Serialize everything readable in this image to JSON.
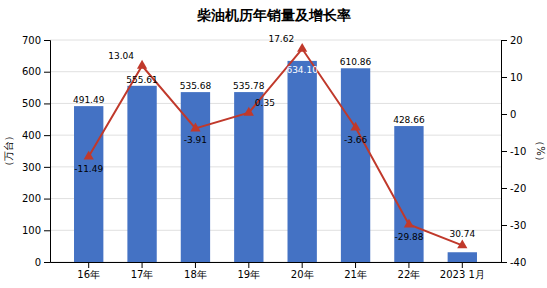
{
  "chart_data": {
    "type": "bar",
    "title": "柴油机历年销量及增长率",
    "categories": [
      "16年",
      "17年",
      "18年",
      "19年",
      "20年",
      "21年",
      "22年",
      "2023 1月"
    ],
    "series": [
      {
        "type": "bar",
        "color": "#4472C4",
        "values": [
          491.49,
          555.61,
          535.68,
          535.78,
          634.1,
          610.86,
          428.66,
          30.74
        ],
        "value_labels": [
          "491.49",
          "555.61",
          "535.68",
          "535.78",
          "634.10",
          "610.86",
          "428.66",
          "30.74"
        ]
      },
      {
        "type": "line",
        "axis": "y2",
        "color": "#C0392B",
        "marker": "triangle",
        "values": [
          -11.49,
          13.04,
          -3.91,
          0.35,
          17.62,
          -3.66,
          -29.88,
          -35.49
        ],
        "value_labels": [
          "-11.49",
          "13.04",
          "-3.91",
          "0.35",
          "17.62",
          "-3.66",
          "-29.88",
          null
        ]
      }
    ],
    "ylabel": "（万台）",
    "y2label": "（%）",
    "ylim": [
      0,
      700
    ],
    "yticks": [
      0,
      100,
      200,
      300,
      400,
      500,
      600,
      700
    ],
    "y2lim": [
      -40,
      20
    ],
    "y2ticks": [
      -40,
      -30,
      -20,
      -10,
      0,
      10,
      20
    ],
    "grid": true,
    "data_labels": true
  }
}
